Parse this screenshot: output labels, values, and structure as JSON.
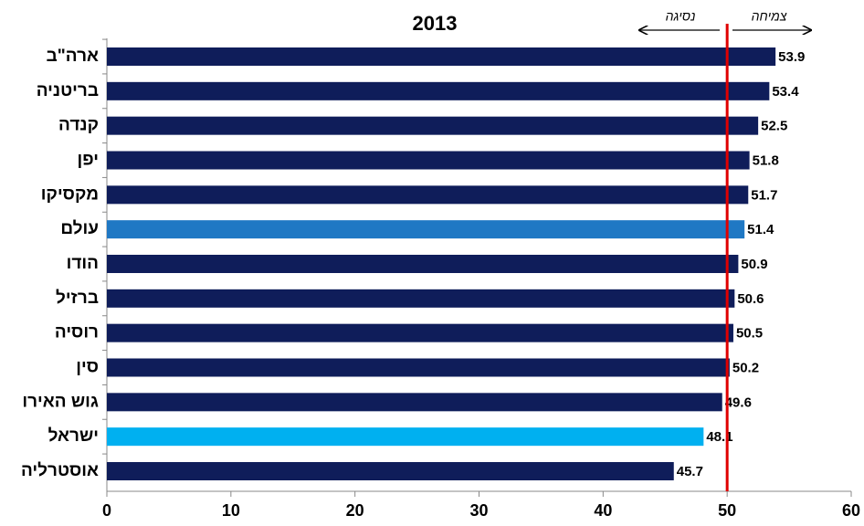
{
  "chart_data": {
    "type": "hbar",
    "title": "2013",
    "categories": [
      "ארה\"ב",
      "בריטניה",
      "קנדה",
      "יפן",
      "מקסיקו",
      "עולם",
      "הודו",
      "ברזיל",
      "רוסיה",
      "סין",
      "גוש האירו",
      "ישראל",
      "אוסטרליה"
    ],
    "values": [
      53.9,
      53.4,
      52.5,
      51.8,
      51.7,
      51.4,
      50.9,
      50.6,
      50.5,
      50.2,
      49.6,
      48.1,
      45.7
    ],
    "colors": [
      "#0f1d5a",
      "#0f1d5a",
      "#0f1d5a",
      "#0f1d5a",
      "#0f1d5a",
      "#1f78c4",
      "#0f1d5a",
      "#0f1d5a",
      "#0f1d5a",
      "#0f1d5a",
      "#0f1d5a",
      "#00b0f0",
      "#0f1d5a"
    ],
    "xlim": [
      0,
      60
    ],
    "xticks": [
      0,
      10,
      20,
      30,
      40,
      50,
      60
    ],
    "reference_line": {
      "value": 50,
      "color": "#e00000"
    },
    "annotations": {
      "left": "נסיגה",
      "right": "צמיחה"
    },
    "grid": false
  }
}
